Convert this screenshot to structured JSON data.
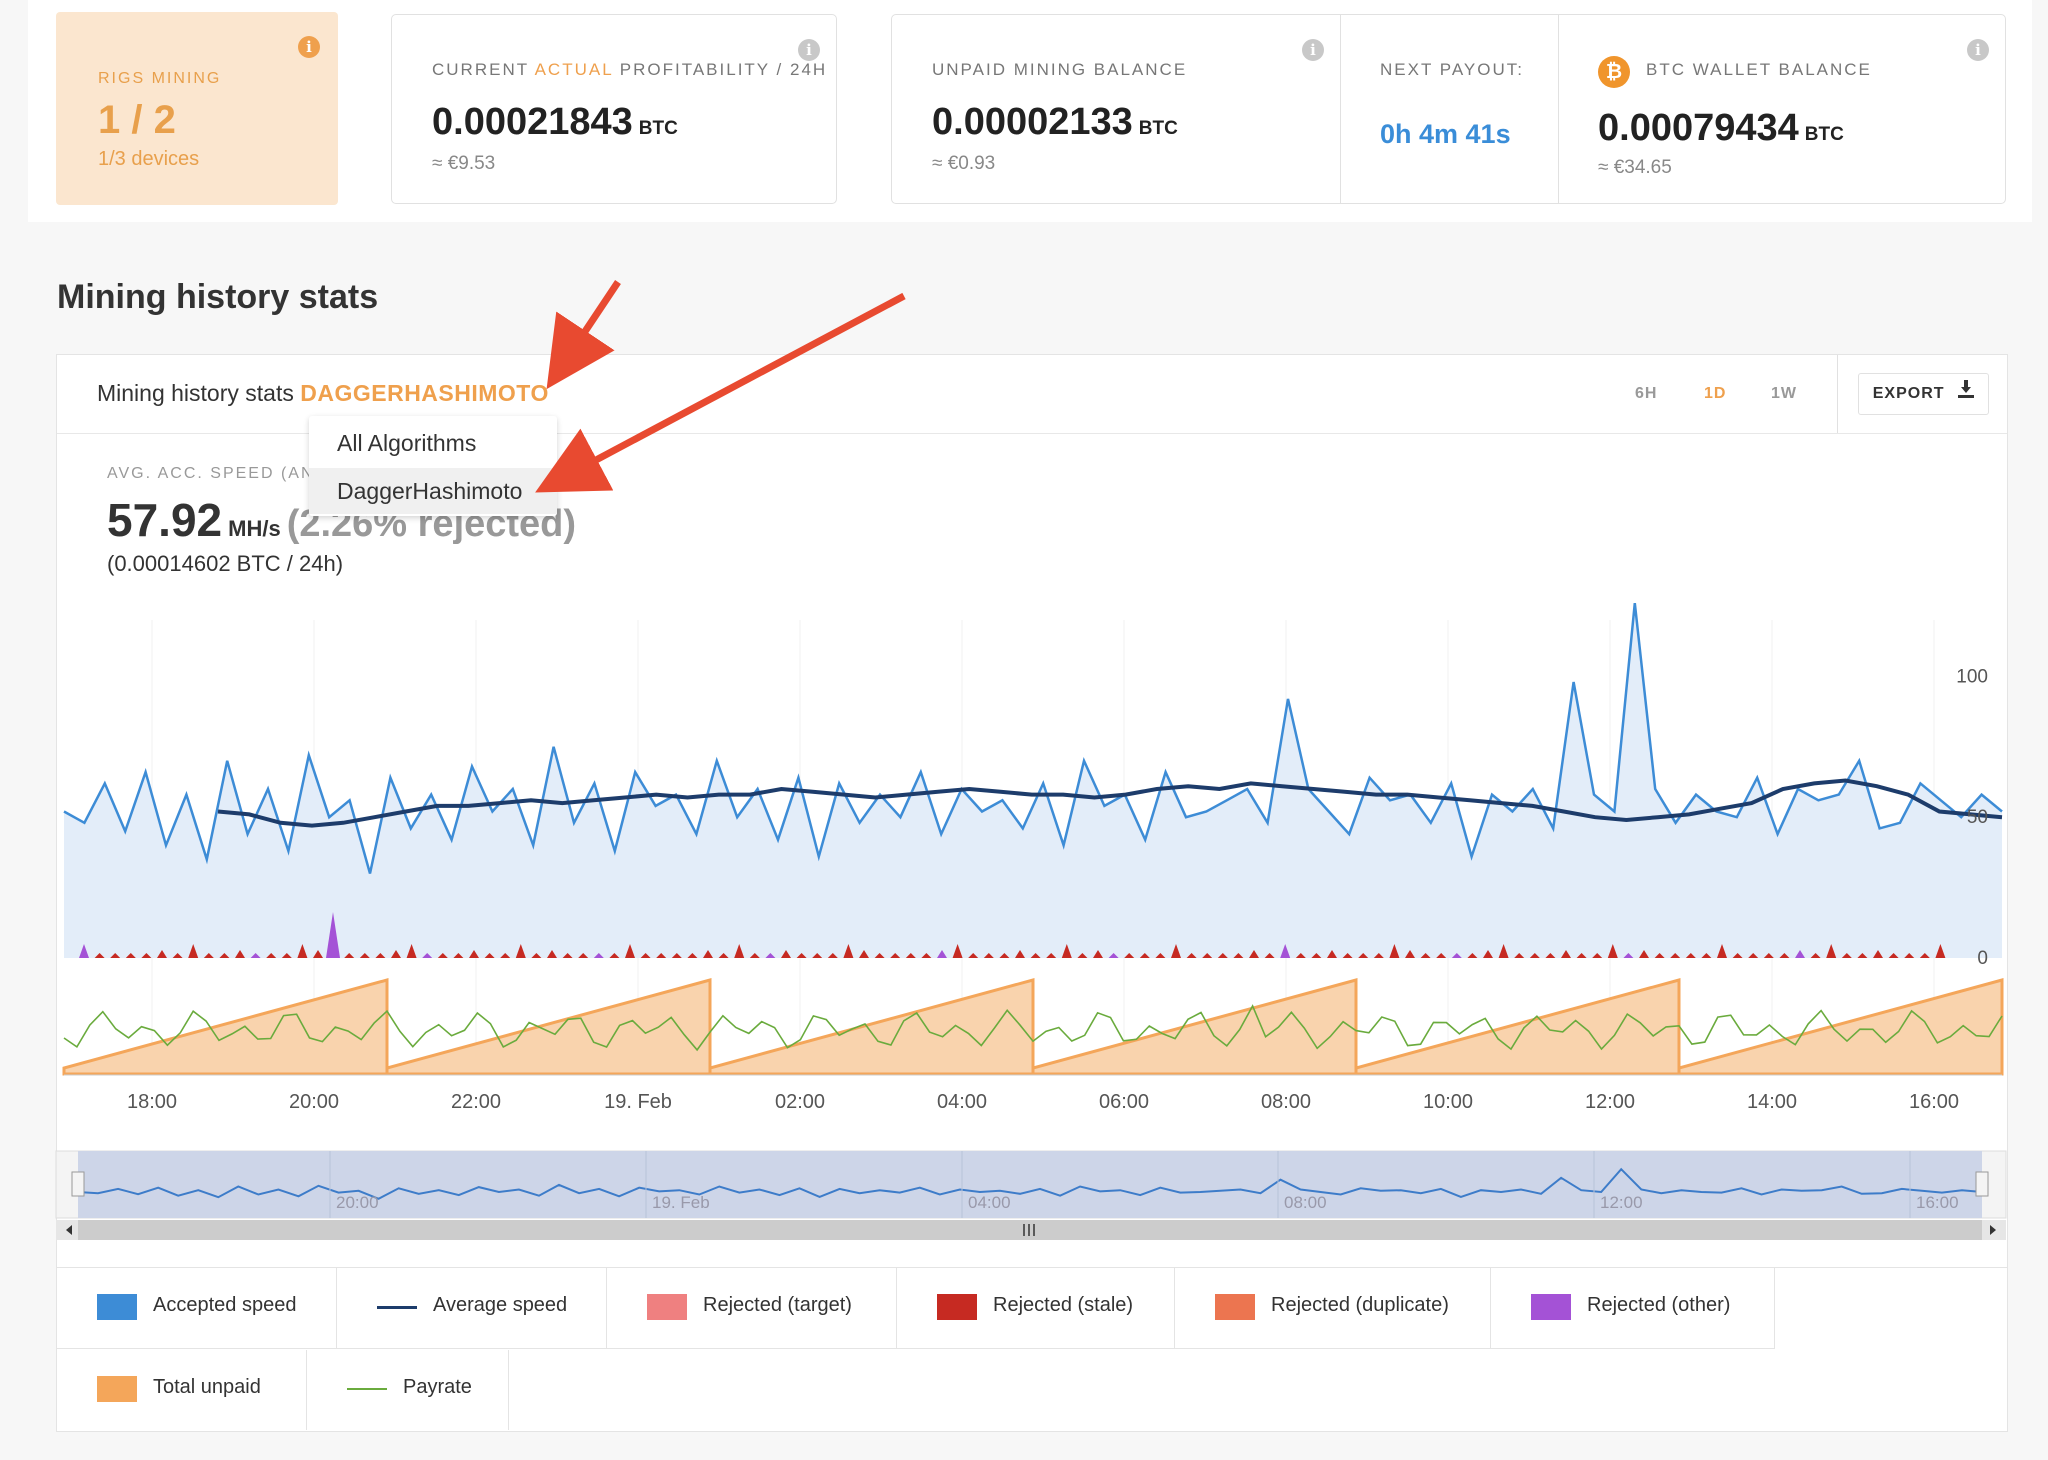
{
  "stats_bar": {
    "rigs": {
      "label": "RIGS MINING",
      "value": "1 / 2",
      "sub": "1/3 devices"
    },
    "profitability": {
      "label_pre": "CURRENT ",
      "label_accent": "ACTUAL",
      "label_post": " PROFITABILITY / 24H",
      "value": "0.00021843",
      "unit": "BTC",
      "fiat": "≈ €9.53"
    },
    "unpaid": {
      "label": "UNPAID MINING BALANCE",
      "value": "0.00002133",
      "unit": "BTC",
      "fiat": "≈ €0.93"
    },
    "next_payout": {
      "label": "NEXT PAYOUT:",
      "value": "0h 4m 41s"
    },
    "wallet": {
      "label": "BTC WALLET BALANCE",
      "value": "0.00079434",
      "unit": "BTC",
      "fiat": "≈ €34.65",
      "badge": "₿"
    },
    "info_glyph": "i"
  },
  "section_title": "Mining history stats",
  "panel": {
    "title": "Mining history stats ",
    "algorithm": "DAGGERHASHIMOTO",
    "ranges": [
      "6H",
      "1D",
      "1W"
    ],
    "active_range": "1D",
    "export_label": "EXPORT",
    "export_icon": "download-icon",
    "stat_label_left": "AVG. ACC. SPEED (AND",
    "stat_label_right": "E RANGE",
    "speed_value": "57.92",
    "speed_unit": "MH/s",
    "rejected_text": "(2.26% rejected)",
    "btc_per_day": "(0.00014602 BTC / 24h)"
  },
  "dropdown": {
    "items": [
      "All Algorithms",
      "DaggerHashimoto"
    ],
    "selected": "DaggerHashimoto"
  },
  "chart_data": {
    "type": "area",
    "x_ticks": [
      "18:00",
      "20:00",
      "22:00",
      "19. Feb",
      "02:00",
      "04:00",
      "06:00",
      "08:00",
      "10:00",
      "12:00",
      "14:00",
      "16:00"
    ],
    "y_ticks": [
      0,
      50,
      100
    ],
    "ylim": [
      0,
      120
    ],
    "navigator_ticks": [
      "20:00",
      "19. Feb",
      "04:00",
      "08:00",
      "12:00",
      "16:00"
    ],
    "accepted_speed_mhs": [
      52,
      48,
      62,
      45,
      66,
      40,
      58,
      35,
      70,
      44,
      60,
      38,
      72,
      50,
      56,
      30,
      64,
      46,
      58,
      42,
      68,
      52,
      60,
      40,
      75,
      48,
      62,
      38,
      66,
      54,
      58,
      44,
      70,
      50,
      60,
      42,
      64,
      36,
      62,
      48,
      58,
      50,
      66,
      44,
      60,
      52,
      56,
      46,
      62,
      40,
      70,
      54,
      58,
      42,
      66,
      50,
      52,
      56,
      60,
      48,
      92,
      60,
      52,
      44,
      64,
      56,
      58,
      48,
      62,
      36,
      58,
      52,
      60,
      46,
      98,
      58,
      52,
      126,
      60,
      48,
      58,
      52,
      50,
      64,
      44,
      60,
      56,
      58,
      70,
      46,
      48,
      62,
      56,
      50,
      58,
      52
    ],
    "average_speed_mhs": [
      52,
      51,
      48,
      47,
      48,
      50,
      52,
      54,
      54,
      55,
      56,
      55,
      56,
      57,
      58,
      57,
      58,
      58,
      60,
      59,
      58,
      57,
      58,
      59,
      60,
      59,
      58,
      58,
      57,
      58,
      60,
      61,
      60,
      62,
      61,
      60,
      59,
      58,
      58,
      57,
      56,
      55,
      54,
      52,
      50,
      49,
      50,
      51,
      53,
      55,
      60,
      62,
      63,
      61,
      58,
      52,
      51,
      50
    ],
    "total_unpaid_cycle_count": 6,
    "series": [
      {
        "name": "Accepted speed",
        "color": "#3d8cd6"
      },
      {
        "name": "Average speed",
        "color": "#1d3c6b"
      },
      {
        "name": "Rejected (target)",
        "color": "#ef8080"
      },
      {
        "name": "Rejected (stale)",
        "color": "#c62a22"
      },
      {
        "name": "Rejected (duplicate)",
        "color": "#ec7550"
      },
      {
        "name": "Rejected (other)",
        "color": "#a452d6"
      },
      {
        "name": "Total unpaid",
        "color": "#f4a65a"
      },
      {
        "name": "Payrate",
        "color": "#6aab3d"
      }
    ]
  },
  "annotations": {
    "arrow_color": "#e84a30"
  }
}
